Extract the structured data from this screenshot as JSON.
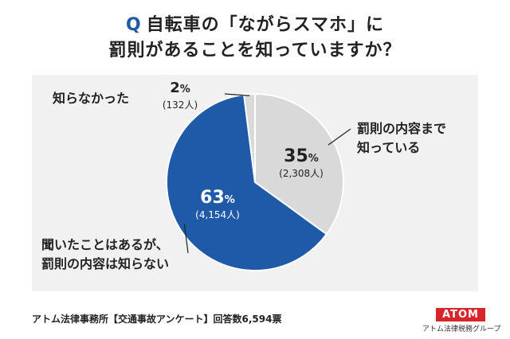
{
  "title": {
    "q_mark": "Q",
    "line1": "自転車の「ながらスマホ」に",
    "line2": "罰則があることを知っていますか？"
  },
  "chart_data": {
    "type": "pie",
    "slices": [
      {
        "label_line1": "罰則の内容まで",
        "label_line2": "知っている",
        "percent": 35,
        "percent_text": "35",
        "count": 2308,
        "count_text": "(2,308人)",
        "color": "#d9d9d9",
        "text_color": "#222222"
      },
      {
        "label_line1": "聞いたことはあるが、",
        "label_line2": "罰則の内容は知らない",
        "percent": 63,
        "percent_text": "63",
        "count": 4154,
        "count_text": "(4,154人)",
        "color": "#1e5aa8",
        "text_color": "#ffffff"
      },
      {
        "label_line1": "知らなかった",
        "label_line2": "",
        "percent": 2,
        "percent_text": "2",
        "count": 132,
        "count_text": "(132人)",
        "color": "#d9d9d9",
        "text_color": "#222222"
      }
    ],
    "percent_unit": "%"
  },
  "footer": {
    "source": "アトム法律事務所【交通事故アンケート】回答数6,594票"
  },
  "logo": {
    "mark": "ATOM",
    "subtitle": "アトム法律税務グループ"
  },
  "colors": {
    "accent": "#1e5aa8",
    "logo_red": "#d7262b",
    "panel": "#f1f1f1"
  }
}
